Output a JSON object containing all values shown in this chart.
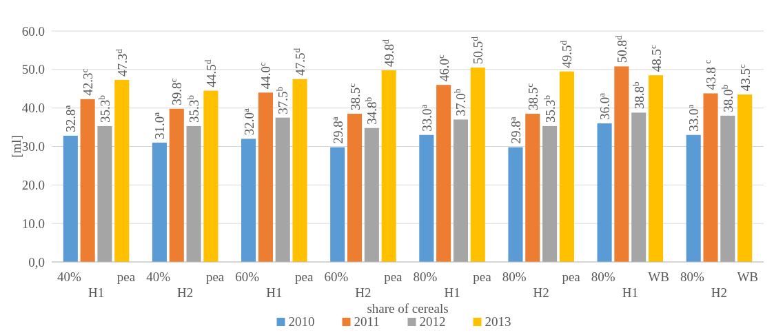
{
  "chart_data": {
    "type": "bar",
    "xlabel": "share of cereals",
    "ylabel": "[ml]",
    "categories": [
      "40% pea H1",
      "40% pea H2",
      "60% pea H1",
      "60% pea H2",
      "80% pea H1",
      "80% pea H2",
      "80% WB H1",
      "80% WB H2"
    ],
    "series": [
      {
        "name": "2010",
        "color": "#5b9bd5",
        "values": [
          32.8,
          31.0,
          32.0,
          29.8,
          33.0,
          29.8,
          36.0,
          33.0
        ],
        "value_labels": [
          "32.8$^{a}$",
          "31.0$^{a}$",
          "32.0$^{a}$",
          "29.8$^{a}$",
          "33.0$^{a}$",
          "29.8$^{a}$",
          "36.0$^{a}$",
          "33.0$^{a}$"
        ]
      },
      {
        "name": "2011",
        "color": "#ed7d31",
        "values": [
          42.3,
          39.8,
          44.0,
          38.5,
          46.0,
          38.5,
          50.8,
          43.8
        ],
        "value_labels": [
          "42.3$^{c}$",
          "39.8$^{c}$",
          "44.0$^{c}$",
          "38.5$^{c}$",
          "46.0$^{c}$",
          "38.5$^{c}$",
          "50.8$^{d}$",
          "43.8 $^{c}$"
        ]
      },
      {
        "name": "2012",
        "color": "#a5a5a5",
        "values": [
          35.3,
          35.3,
          37.5,
          34.8,
          37.0,
          35.3,
          38.8,
          38.0
        ],
        "value_labels": [
          "35.3$^{b}$",
          "35.3$^{b}$",
          "37.5$^{b}$",
          "34.8$^{b}$",
          "37.0$^{b}$",
          "35.3$^{b}$",
          "38.8$^{b}$",
          "38.0$^{b}$"
        ]
      },
      {
        "name": "2013",
        "color": "#ffc000",
        "values": [
          47.3,
          44.5,
          47.5,
          49.8,
          50.5,
          49.5,
          48.5,
          43.5
        ],
        "value_labels": [
          "47.3$^{d}$",
          "44.5$^{d}$",
          "47.5$^{d}$",
          "49.8$^{d}$",
          "50.5$^{d}$",
          "49.5$^{d}$",
          "48.5$^{c}$",
          "43.5$^{c}$"
        ]
      }
    ],
    "ylim": [
      0,
      60
    ],
    "yticks": [
      {
        "value": 0,
        "label": "0,0"
      },
      {
        "value": 10,
        "label": "10.0"
      },
      {
        "value": 20,
        "label": "20.0"
      },
      {
        "value": 30,
        "label": "30.0"
      },
      {
        "value": 40,
        "label": "40.0"
      },
      {
        "value": 50,
        "label": "50.0"
      },
      {
        "value": 60,
        "label": "60.0"
      }
    ],
    "grid": "y",
    "legend": "bottom"
  }
}
